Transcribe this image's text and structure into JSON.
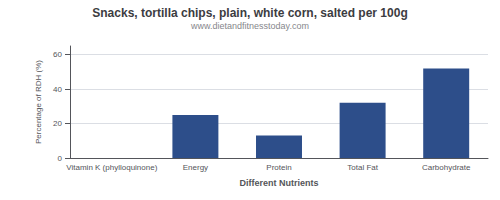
{
  "chart_data": {
    "type": "bar",
    "title": "Snacks, tortilla chips, plain, white corn, salted per 100g",
    "subtitle": "www.dietandfitnesstoday.com",
    "xlabel": "Different Nutrients",
    "ylabel": "Percentage of RDH (%)",
    "categories": [
      "Vitamin K (phylloquinone)",
      "Energy",
      "Protein",
      "Total Fat",
      "Carbohydrate"
    ],
    "values": [
      0,
      25,
      13,
      32,
      52
    ],
    "color": "#2d4e8a",
    "ylim": [
      0,
      65
    ],
    "yticks": [
      0,
      20,
      40,
      60
    ],
    "grid": true
  }
}
